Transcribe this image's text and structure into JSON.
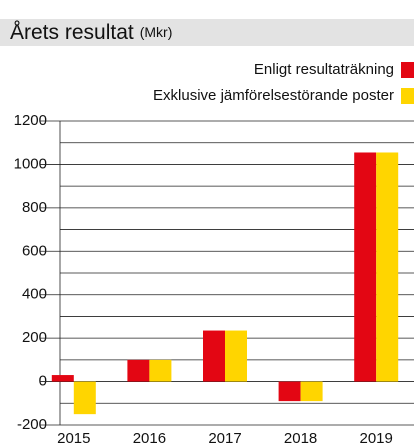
{
  "chart_data": {
    "type": "bar",
    "title": "Årets resultat",
    "subtitle": "(Mkr)",
    "categories": [
      "2015",
      "2016",
      "2017",
      "2018",
      "2019"
    ],
    "series": [
      {
        "name": "Enligt resultaträkning",
        "color": "#e30613",
        "values": [
          30,
          100,
          235,
          -90,
          1055
        ]
      },
      {
        "name": "Exklusive jämförelsestörande poster",
        "color": "#ffd500",
        "values": [
          -150,
          100,
          235,
          -90,
          1055
        ]
      }
    ],
    "ylim": [
      -200,
      1200
    ],
    "yticks": [
      -200,
      0,
      200,
      400,
      600,
      800,
      1000,
      1200
    ],
    "minor_yticks": [
      -100,
      100,
      300,
      500,
      700,
      900,
      1100
    ],
    "grid": true,
    "legend": "top-right"
  }
}
